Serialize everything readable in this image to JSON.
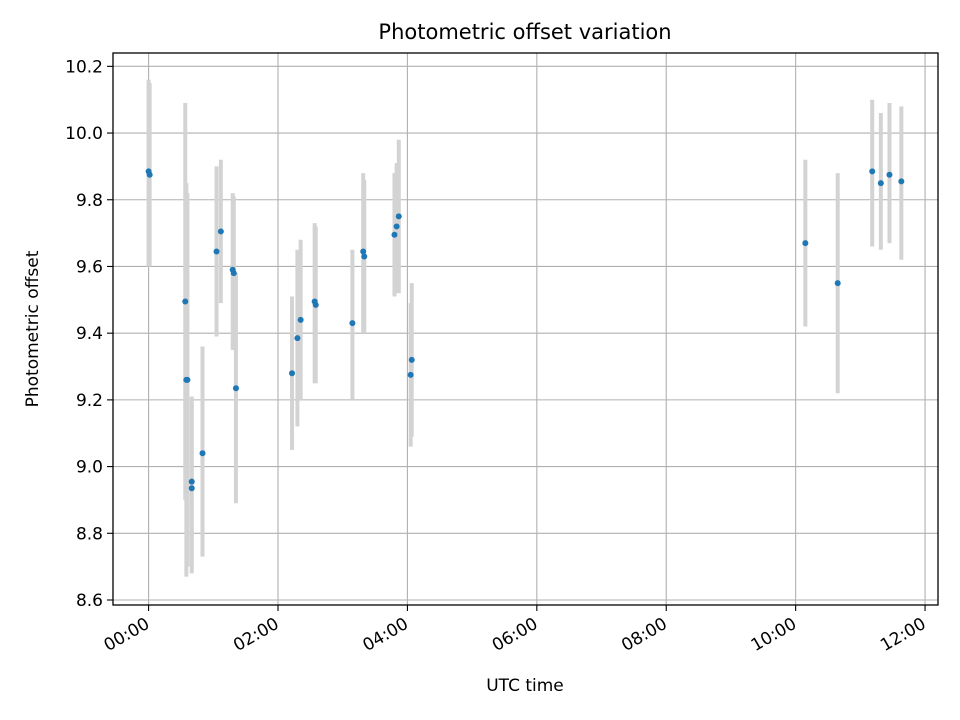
{
  "chart_data": {
    "type": "scatter",
    "title": "Photometric offset variation",
    "xlabel": "UTC time",
    "ylabel": "Photometric offset",
    "x_ticks": [
      "00:00",
      "02:00",
      "04:00",
      "06:00",
      "08:00",
      "10:00",
      "12:00"
    ],
    "x_tick_hours": [
      0,
      2,
      4,
      6,
      8,
      10,
      12
    ],
    "y_ticks": [
      "8.6",
      "8.8",
      "9.0",
      "9.2",
      "9.4",
      "9.6",
      "9.8",
      "10.0",
      "10.2"
    ],
    "y_tick_values": [
      8.6,
      8.8,
      9.0,
      9.2,
      9.4,
      9.6,
      9.8,
      10.0,
      10.2
    ],
    "xlim_hours": [
      -0.55,
      12.2
    ],
    "ylim": [
      8.585,
      10.24
    ],
    "grid": true,
    "colors": {
      "point": "#1f77b4",
      "errorbar": "#d3d3d3",
      "grid": "#b0b0b0"
    },
    "points": [
      {
        "x": "00:00",
        "y": 9.885,
        "low": 9.6,
        "high": 10.16
      },
      {
        "x": "00:01",
        "y": 9.875,
        "low": 9.6,
        "high": 10.15
      },
      {
        "x": "00:34",
        "y": 9.495,
        "low": 8.9,
        "high": 10.09
      },
      {
        "x": "00:35",
        "y": 9.26,
        "low": 8.67,
        "high": 9.85
      },
      {
        "x": "00:36",
        "y": 9.26,
        "low": 8.7,
        "high": 9.82
      },
      {
        "x": "00:40",
        "y": 8.955,
        "low": 8.7,
        "high": 9.21
      },
      {
        "x": "00:40",
        "y": 8.935,
        "low": 8.68,
        "high": 9.19
      },
      {
        "x": "00:50",
        "y": 9.04,
        "low": 8.73,
        "high": 9.36
      },
      {
        "x": "01:03",
        "y": 9.645,
        "low": 9.39,
        "high": 9.9
      },
      {
        "x": "01:07",
        "y": 9.705,
        "low": 9.49,
        "high": 9.92
      },
      {
        "x": "01:18",
        "y": 9.59,
        "low": 9.35,
        "high": 9.82
      },
      {
        "x": "01:19",
        "y": 9.58,
        "low": 9.35,
        "high": 9.81
      },
      {
        "x": "01:21",
        "y": 9.235,
        "low": 8.89,
        "high": 9.58
      },
      {
        "x": "02:13",
        "y": 9.28,
        "low": 9.05,
        "high": 9.51
      },
      {
        "x": "02:18",
        "y": 9.385,
        "low": 9.12,
        "high": 9.65
      },
      {
        "x": "02:21",
        "y": 9.44,
        "low": 9.2,
        "high": 9.68
      },
      {
        "x": "02:34",
        "y": 9.495,
        "low": 9.25,
        "high": 9.73
      },
      {
        "x": "02:35",
        "y": 9.485,
        "low": 9.25,
        "high": 9.72
      },
      {
        "x": "03:09",
        "y": 9.43,
        "low": 9.2,
        "high": 9.65
      },
      {
        "x": "03:19",
        "y": 9.645,
        "low": 9.4,
        "high": 9.88
      },
      {
        "x": "03:20",
        "y": 9.63,
        "low": 9.4,
        "high": 9.86
      },
      {
        "x": "03:48",
        "y": 9.695,
        "low": 9.51,
        "high": 9.88
      },
      {
        "x": "03:50",
        "y": 9.72,
        "low": 9.52,
        "high": 9.91
      },
      {
        "x": "03:52",
        "y": 9.75,
        "low": 9.52,
        "high": 9.98
      },
      {
        "x": "04:03",
        "y": 9.275,
        "low": 9.06,
        "high": 9.49
      },
      {
        "x": "04:04",
        "y": 9.32,
        "low": 9.09,
        "high": 9.55
      },
      {
        "x": "10:09",
        "y": 9.67,
        "low": 9.42,
        "high": 9.92
      },
      {
        "x": "10:39",
        "y": 9.55,
        "low": 9.22,
        "high": 9.88
      },
      {
        "x": "11:11",
        "y": 9.885,
        "low": 9.66,
        "high": 10.1
      },
      {
        "x": "11:19",
        "y": 9.85,
        "low": 9.65,
        "high": 10.06
      },
      {
        "x": "11:27",
        "y": 9.875,
        "low": 9.67,
        "high": 10.09
      },
      {
        "x": "11:38",
        "y": 9.855,
        "low": 9.62,
        "high": 10.08
      }
    ]
  }
}
